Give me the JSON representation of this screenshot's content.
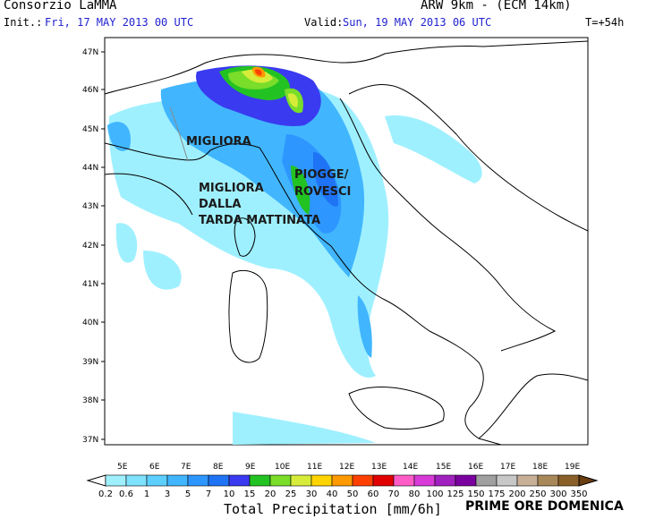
{
  "header": {
    "org": "Consorzio LaMMA",
    "model": "ARW 9km - (ECM 14km)",
    "init_label": "Init.:",
    "init_value": "Fri, 17 MAY 2013  00 UTC",
    "valid_label": "Valid:",
    "valid_value": "Sun, 19 MAY 2013  06 UTC",
    "forecast_step": "T=+54h"
  },
  "map": {
    "lat_labels": [
      "47N",
      "46N",
      "45N",
      "44N",
      "43N",
      "42N",
      "41N",
      "40N",
      "39N",
      "38N",
      "37N"
    ],
    "lon_labels": [
      "5E",
      "6E",
      "7E",
      "8E",
      "9E",
      "10E",
      "11E",
      "12E",
      "13E",
      "14E",
      "15E",
      "16E",
      "17E",
      "18E",
      "19E"
    ],
    "annotations": {
      "migliora": "MIGLIORA",
      "migliora_dalla_1": "MIGLIORA",
      "migliora_dalla_2": "DALLA",
      "migliora_dalla_3": "TARDA MATTINATA",
      "piogge_1": "PIOGGE/",
      "piogge_2": "ROVESCI"
    }
  },
  "legend": {
    "levels": [
      "0.2",
      "0.6",
      "1",
      "3",
      "5",
      "7",
      "10",
      "15",
      "20",
      "25",
      "30",
      "40",
      "50",
      "60",
      "70",
      "80",
      "100",
      "125",
      "150",
      "175",
      "200",
      "250",
      "300",
      "350"
    ],
    "colors": [
      "#9ff0ff",
      "#7ee2ff",
      "#5ccfff",
      "#41b6ff",
      "#2e96ff",
      "#1f73f5",
      "#3a3af0",
      "#23c223",
      "#79dd2a",
      "#d7ec3a",
      "#ffd400",
      "#ff9900",
      "#ff4000",
      "#e00000",
      "#ff5cc7",
      "#d83ad8",
      "#a020c0",
      "#7a00a0",
      "#a0a0a0",
      "#c8c8c8",
      "#c8b098",
      "#a88858",
      "#8a6028",
      "#6a3e10"
    ],
    "title": "Total Precipitation [mm/6h]",
    "note": "PRIME ORE DOMENICA"
  }
}
